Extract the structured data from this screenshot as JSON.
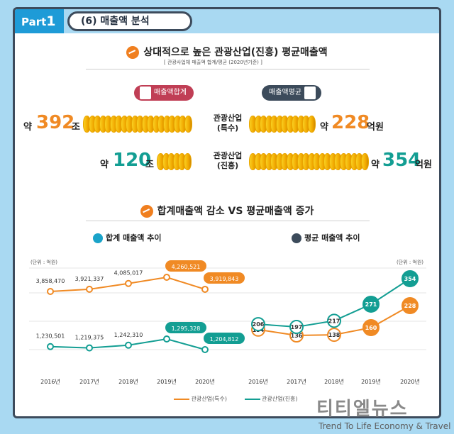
{
  "header": {
    "part": "Part",
    "part_num": "1",
    "section_title": "(6) 매출액 분석"
  },
  "title1": {
    "text": "상대적으로 높은 관광산업(진흥) 평균매출액",
    "sub": "[ 관광사업체 매출액 합계/평균 (2020년기준) ]"
  },
  "labels": {
    "sum": "매출액합계",
    "avg": "매출액평균"
  },
  "rows": [
    {
      "name1": "관광산업",
      "name2": "(특수)",
      "left_pre": "약",
      "left_value": "392",
      "left_unit": "조",
      "right_pre": "약",
      "right_value": "228",
      "right_unit": "억원"
    },
    {
      "name1": "관광산업",
      "name2": "(진흥)",
      "left_pre": "약",
      "left_value": "120",
      "left_unit": "조",
      "right_pre": "약",
      "right_value": "354",
      "right_unit": "억원"
    }
  ],
  "title2": {
    "text": "합계매출액 감소 VS 평균매출액 증가"
  },
  "charts_titles": {
    "left": "합계 매출액 추이",
    "right": "평균 매출액 추이",
    "unit_left": "(단위 : 억원)",
    "unit_right": "(단위 : 억원)"
  },
  "colors": {
    "orange": "#f08a24",
    "teal": "#139e93",
    "red": "#c03e55"
  },
  "chart_data": [
    {
      "type": "line",
      "title": "합계 매출액 추이",
      "x": [
        "2016년",
        "2017년",
        "2018년",
        "2019년",
        "2020년"
      ],
      "series": [
        {
          "name": "관광산업(특수)",
          "values": [
            3858470,
            3921337,
            4085017,
            4260521,
            3919843
          ],
          "labels": [
            "3,858,470",
            "3,921,337",
            "4,085,017",
            "4,260,521",
            "3,919,843"
          ]
        },
        {
          "name": "관광산업(진흥)",
          "values": [
            1230501,
            1219375,
            1242310,
            1295328,
            1204812
          ],
          "labels": [
            "1,230,501",
            "1,219,375",
            "1,242,310",
            "1,295,328",
            "1,204,812"
          ]
        }
      ]
    },
    {
      "type": "line",
      "title": "평균 매출액 추이",
      "x": [
        "2016년",
        "2017년",
        "2018년",
        "2019년",
        "2020년"
      ],
      "series": [
        {
          "name": "관광산업(특수)",
          "values": [
            154,
            136,
            138,
            160,
            228
          ],
          "labels": [
            "154",
            "136",
            "138",
            "160",
            "228"
          ]
        },
        {
          "name": "관광산업(진흥)",
          "values": [
            206,
            197,
            217,
            271,
            354
          ],
          "labels": [
            "206",
            "197",
            "217",
            "271",
            "354"
          ]
        }
      ]
    }
  ],
  "legend": {
    "a": "관광산업(특수)",
    "b": "관광산업(진흥)"
  },
  "watermark": {
    "kr": "티티엘뉴스",
    "en": "Trend To Life Economy & Travel"
  }
}
